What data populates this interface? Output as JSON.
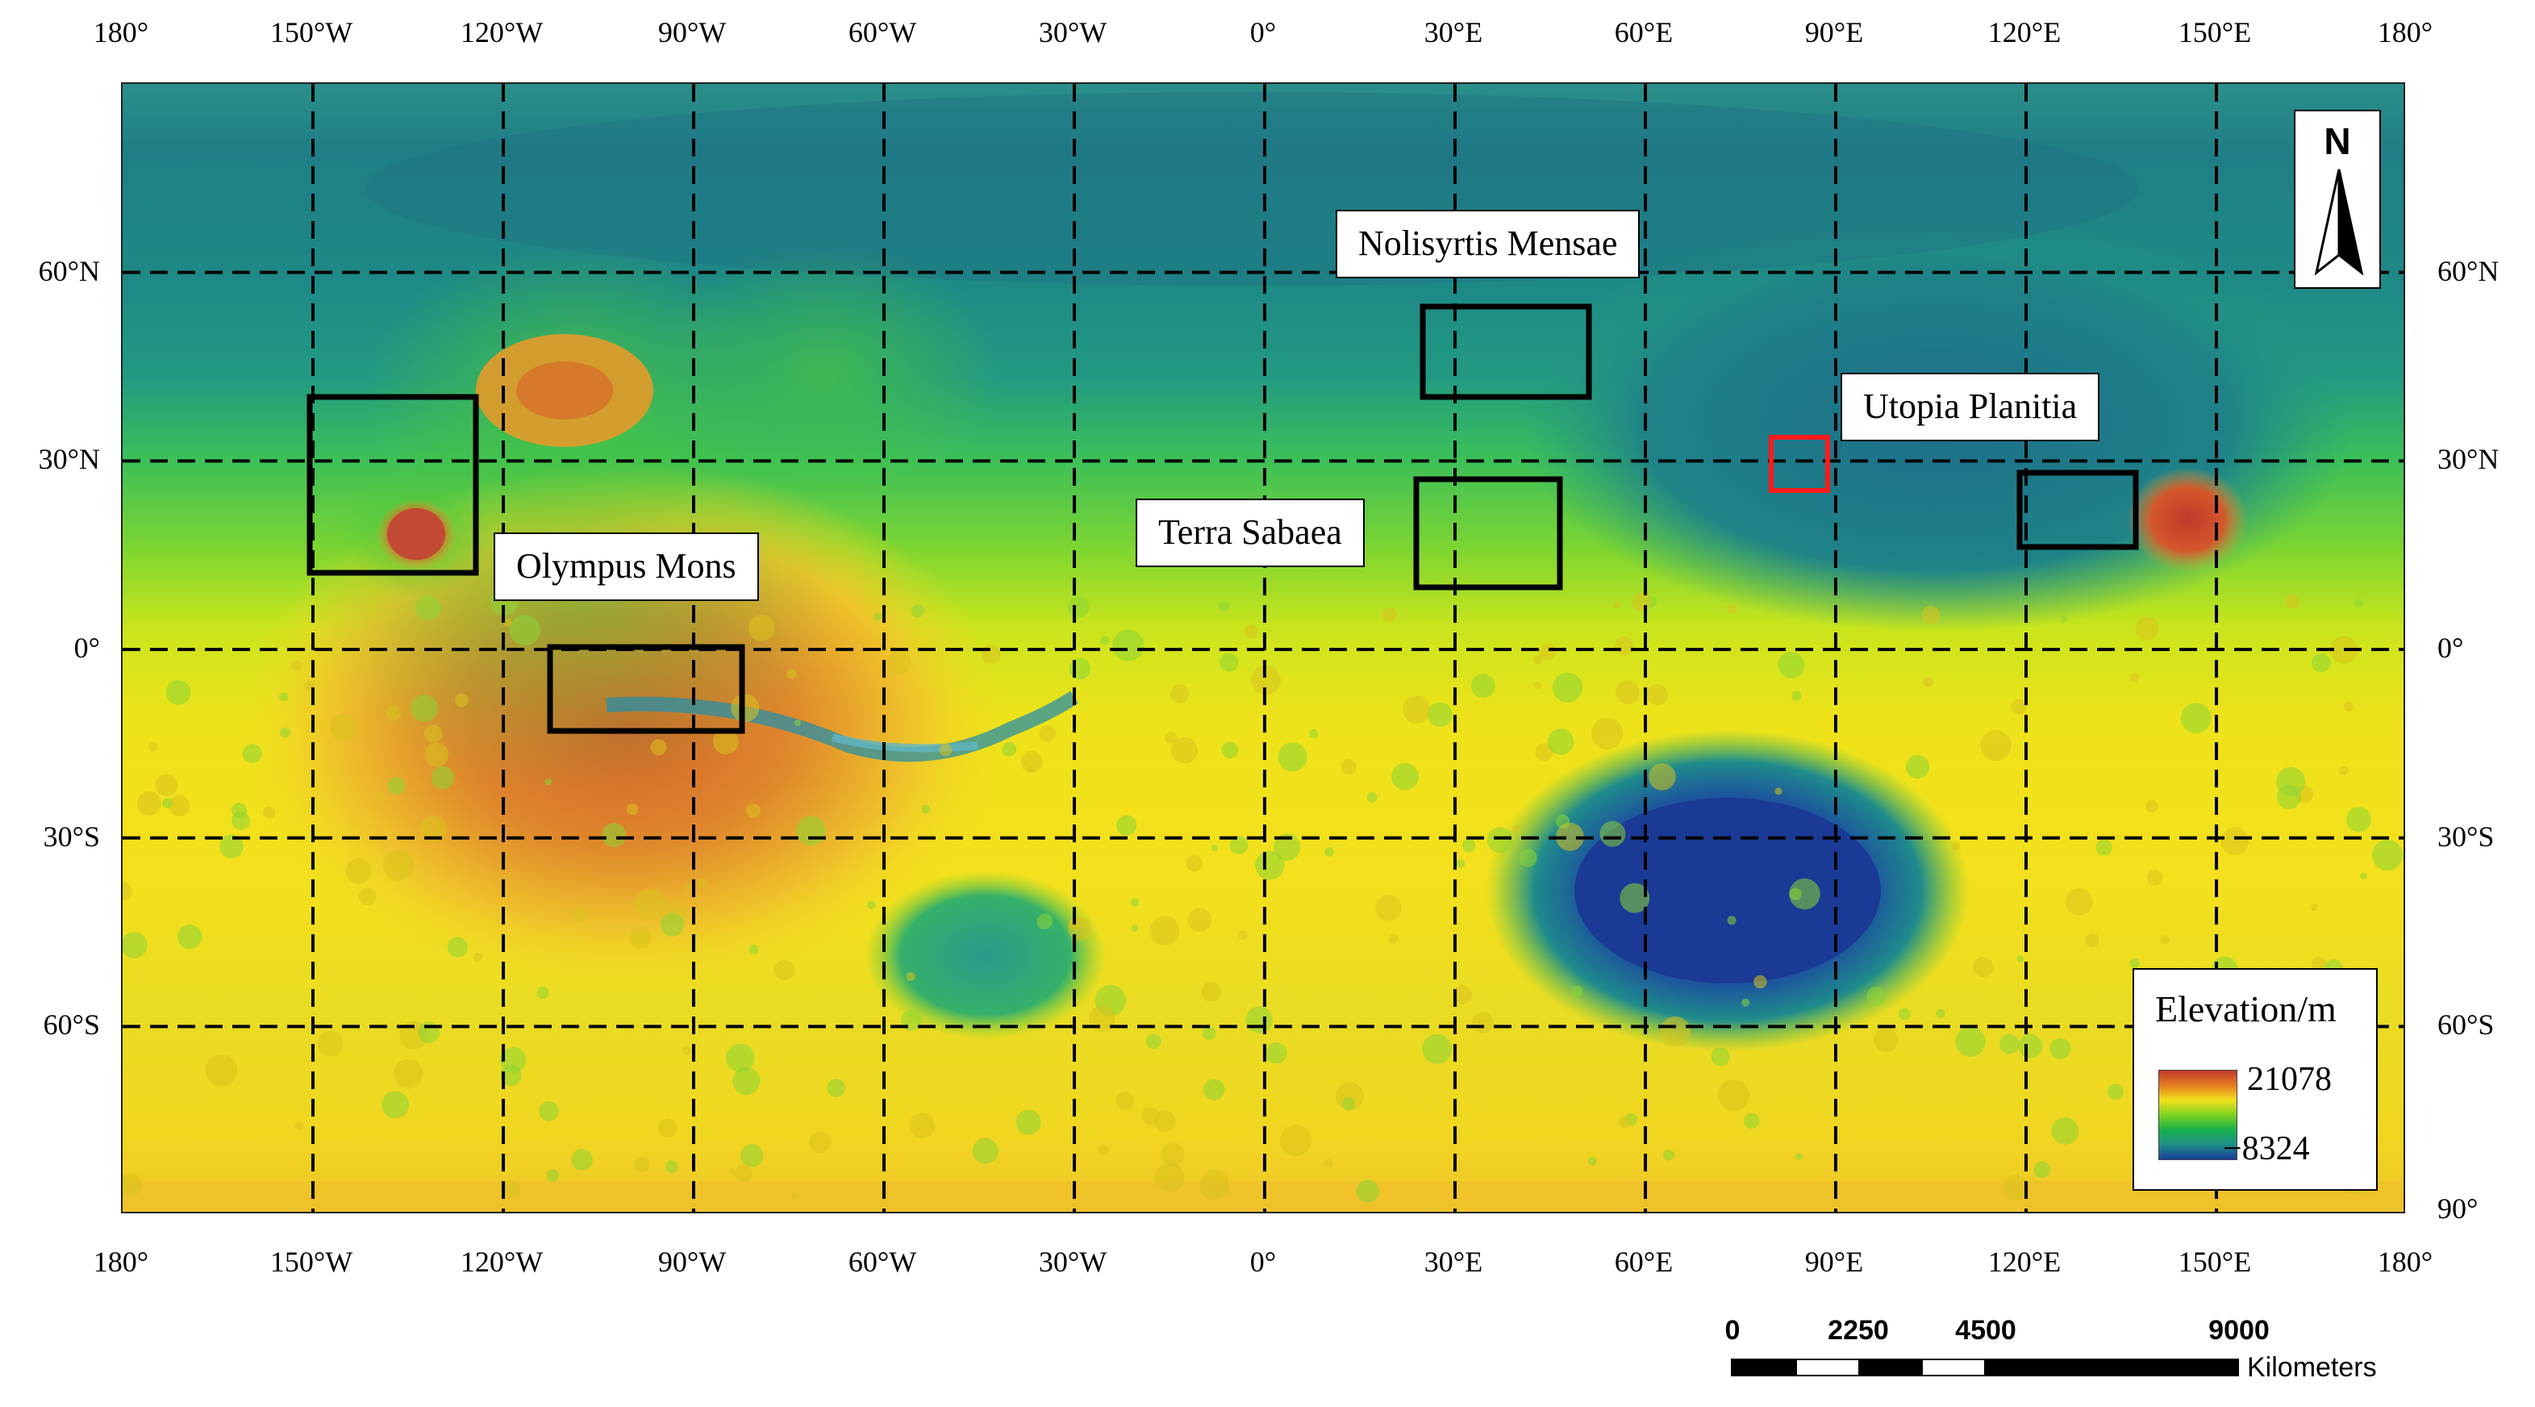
{
  "map": {
    "longitude_labels": [
      "180°",
      "150°W",
      "120°W",
      "90°W",
      "60°W",
      "30°W",
      "0°",
      "30°E",
      "60°E",
      "90°E",
      "120°E",
      "150°E",
      "180°"
    ],
    "latitude_labels_left": [
      "60°N",
      "30°N",
      "0°",
      "30°S",
      "60°S"
    ],
    "latitude_labels_right": [
      "60°N",
      "30°N",
      "0°",
      "30°S",
      "60°S",
      "90°"
    ],
    "longitudes": [
      -180,
      -150,
      -120,
      -90,
      -60,
      -30,
      0,
      30,
      60,
      90,
      120,
      150,
      180
    ],
    "latitudes": [
      60,
      30,
      0,
      -30,
      -60
    ],
    "grid_style": "dashed"
  },
  "regions": {
    "olympus_mons": {
      "label": "Olympus Mons",
      "box_color": "#000000"
    },
    "nolisyrtis_mensae": {
      "label": "Nolisyrtis Mensae",
      "box_color": "#000000"
    },
    "terra_sabaea": {
      "label": "Terra Sabaea",
      "box_color": "#000000"
    },
    "utopia_planitia": {
      "label": "Utopia Planitia",
      "box_color": "#000000"
    },
    "highlight": {
      "box_color": "#ff1a1a"
    }
  },
  "north_arrow": {
    "label": "N"
  },
  "legend": {
    "title": "Elevation/m",
    "max": "21078",
    "min": "−8324",
    "colors": [
      "#c0392b",
      "#e67e22",
      "#f4e01c",
      "#7ed321",
      "#19b24a",
      "#1f8f8a",
      "#1a3f9a"
    ]
  },
  "scale_bar": {
    "ticks": [
      "0",
      "2250",
      "4500",
      "9000"
    ],
    "units": "Kilometers"
  }
}
